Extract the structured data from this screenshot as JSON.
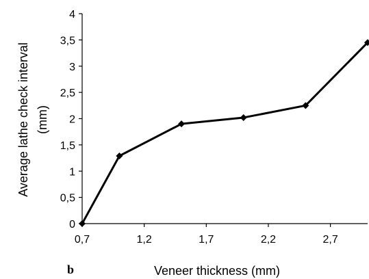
{
  "panel_label": "b",
  "chart_data": {
    "type": "line",
    "title": "",
    "xlabel": "Veneer thickness (mm)",
    "ylabel": [
      "Average lathe check interval",
      "(mm)"
    ],
    "xlim": [
      0.7,
      3.0
    ],
    "ylim": [
      0,
      4
    ],
    "x_ticks": [
      0.7,
      1.2,
      1.7,
      2.2,
      2.7
    ],
    "x_tick_labels": [
      "0,7",
      "1,2",
      "1,7",
      "2,2",
      "2,7"
    ],
    "y_ticks": [
      0,
      0.5,
      1,
      1.5,
      2,
      2.5,
      3,
      3.5,
      4
    ],
    "y_tick_labels": [
      "0",
      "0,5",
      "1",
      "1,5",
      "2",
      "2,5",
      "3",
      "3,5",
      "4"
    ],
    "grid": false,
    "legend": "none",
    "series": [
      {
        "x": [
          0.7,
          1.0,
          1.5,
          2.0,
          2.5,
          3.0
        ],
        "y": [
          0,
          1.29,
          1.9,
          2.02,
          2.25,
          3.45
        ],
        "marker": "diamond",
        "color": "#000000"
      }
    ]
  }
}
